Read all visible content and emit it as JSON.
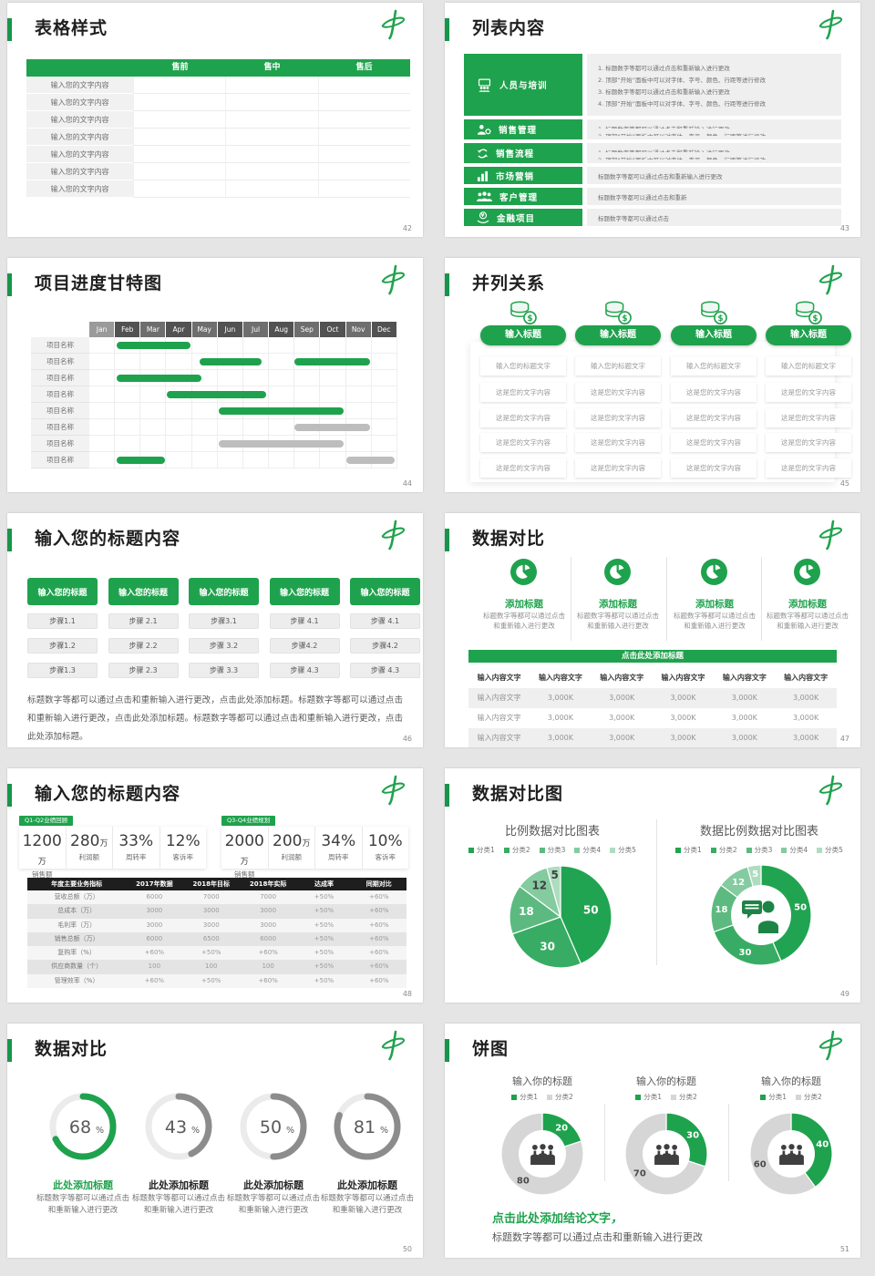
{
  "brand": {
    "logo": "calligraphic-zhong-mark",
    "accent_green": "#1fa24d"
  },
  "colors": {
    "green": "#1fa24d",
    "green_dark": "#17954a",
    "gray_bar": "#bdbdbd",
    "ring_gray": "#8c8c8c",
    "ring_track": "#ebebeb",
    "pie": [
      "#21a451",
      "#38ac64",
      "#5cba80",
      "#84cba0",
      "#aedcc0"
    ],
    "donut_gray": "#d6d6d6"
  },
  "slides": {
    "s42": {
      "title": "表格样式",
      "page": "42",
      "table": {
        "headers": [
          "",
          "售前",
          "售中",
          "售后"
        ],
        "row_label": "输入您的文字内容",
        "row_count": 7
      }
    },
    "s43": {
      "title": "列表内容",
      "page": "43",
      "items": [
        {
          "label": "人员与培训",
          "icon": "training-icon",
          "lines": [
            "1.   标题数字等都可以通过点击和重新输入进行更改",
            "2.   顶部“开始”面板中可以对字体、字号、颜色、行距等进行修改",
            "3.   标题数字等都可以通过点击和重新输入进行更改",
            "4.   顶部“开始”面板中可以对字体、字号、颜色、行距等进行修改"
          ]
        },
        {
          "label": "销售管理",
          "icon": "sales-manager-icon",
          "lines": [
            "1.   标题数字等都可以通过点击和重新输入进行更改",
            "2.   顶部“开始”面板中可以对字体、字号、颜色、行距等进行修改"
          ]
        },
        {
          "label": "销售流程",
          "icon": "process-arrows-icon",
          "lines": [
            "1.   标题数字等都可以通过点击和重新输入进行更改",
            "2.   顶部“开始”面板中可以对字体、字号、颜色、行距等进行修改"
          ]
        },
        {
          "label": "市场营销",
          "icon": "bar-chart-icon",
          "lines": [
            "标题数字等都可以通过点击和重新输入进行更改"
          ]
        },
        {
          "label": "客户管理",
          "icon": "customers-icon",
          "lines": [
            "标题数字等都可以通过点击和重新"
          ]
        },
        {
          "label": "金融项目",
          "icon": "finance-coin-icon",
          "lines": [
            "标题数字等都可以通过点击"
          ]
        }
      ]
    },
    "s44": {
      "title": "项目进度甘特图",
      "page": "44"
    },
    "s45": {
      "title": "并列关系",
      "page": "45",
      "columns": [
        {
          "icon": "coins-icon",
          "header": "输入标题",
          "items": [
            "输入您的标题文字",
            "这是您的文字内容",
            "这是您的文字内容",
            "这是您的文字内容",
            "这是您的文字内容"
          ]
        },
        {
          "icon": "coins-icon",
          "header": "输入标题",
          "items": [
            "输入您的标题文字",
            "这是您的文字内容",
            "这是您的文字内容",
            "这是您的文字内容",
            "这是您的文字内容"
          ]
        },
        {
          "icon": "coins-icon",
          "header": "输入标题",
          "items": [
            "输入您的标题文字",
            "这是您的文字内容",
            "这是您的文字内容",
            "这是您的文字内容",
            "这是您的文字内容"
          ]
        },
        {
          "icon": "coins-icon",
          "header": "输入标题",
          "items": [
            "输入您的标题文字",
            "这是您的文字内容",
            "这是您的文字内容",
            "这是您的文字内容",
            "这是您的文字内容"
          ]
        }
      ]
    },
    "s46": {
      "title": "输入您的标题内容",
      "page": "46",
      "columns": [
        {
          "header": "输入您的标题",
          "steps": [
            "步骤1.1",
            "步骤1.2",
            "步骤1.3"
          ]
        },
        {
          "header": "输入您的标题",
          "steps": [
            "步骤 2.1",
            "步骤 2.2",
            "步骤 2.3"
          ]
        },
        {
          "header": "输入您的标题",
          "steps": [
            "步骤3.1",
            "步骤 3.2",
            "步骤 3.3"
          ]
        },
        {
          "header": "输入您的标题",
          "steps": [
            "步骤 4.1",
            "步骤4.2",
            "步骤 4.3"
          ]
        },
        {
          "header": "输入您的标题",
          "steps": [
            "步骤 4.1",
            "步骤4.2",
            "步骤 4.3"
          ]
        }
      ],
      "paragraph": "标题数字等都可以通过点击和重新输入进行更改，点击此处添加标题。标题数字等都可以通过点击和重新输入进行更改，点击此处添加标题。标题数字等都可以通过点击和重新输入进行更改，点击此处添加标题。"
    },
    "s47": {
      "title": "数据对比",
      "page": "47",
      "features": [
        {
          "icon": "pie-badge-icon",
          "heading": "添加标题",
          "desc": "标题数字等都可以通过点击和重新输入进行更改"
        },
        {
          "icon": "pie-badge-icon",
          "heading": "添加标题",
          "desc": "标题数字等都可以通过点击和重新输入进行更改"
        },
        {
          "icon": "pie-badge-icon",
          "heading": "添加标题",
          "desc": "标题数字等都可以通过点击和重新输入进行更改"
        },
        {
          "icon": "pie-badge-icon",
          "heading": "添加标题",
          "desc": "标题数字等都可以通过点击和重新输入进行更改"
        }
      ],
      "banner": "点击此处添加标题",
      "table": {
        "headers": [
          "输入内容文字",
          "输入内容文字",
          "输入内容文字",
          "输入内容文字",
          "输入内容文字",
          "输入内容文字"
        ],
        "rows": [
          [
            "输入内容文字",
            "3,000K",
            "3,000K",
            "3,000K",
            "3,000K",
            "3,000K"
          ],
          [
            "输入内容文字",
            "3,000K",
            "3,000K",
            "3,000K",
            "3,000K",
            "3,000K"
          ],
          [
            "输入内容文字",
            "3,000K",
            "3,000K",
            "3,000K",
            "3,000K",
            "3,000K"
          ]
        ]
      }
    },
    "s48": {
      "title": "输入您的标题内容",
      "page": "48",
      "groups": [
        {
          "tag": "Q1-Q2业绩回顾",
          "stats": [
            {
              "value": "1200",
              "unit": "万",
              "label": "销售额"
            },
            {
              "value": "280",
              "unit": "万",
              "label": "利润额"
            },
            {
              "value": "33%",
              "unit": "",
              "label": "周转率"
            },
            {
              "value": "12%",
              "unit": "",
              "label": "客诉率"
            }
          ]
        },
        {
          "tag": "Q3-Q4业绩规划",
          "stats": [
            {
              "value": "2000",
              "unit": "万",
              "label": "销售额"
            },
            {
              "value": "200",
              "unit": "万",
              "label": "利润额"
            },
            {
              "value": "34%",
              "unit": "",
              "label": "周转率"
            },
            {
              "value": "10%",
              "unit": "",
              "label": "客诉率"
            }
          ]
        }
      ],
      "table": {
        "headers": [
          "年度主要业务指标",
          "2017年数据",
          "2018年目标",
          "2018年实际",
          "达成率",
          "同期对比"
        ],
        "rows": [
          [
            "营收总额（万）",
            "6000",
            "7000",
            "7000",
            "+50%",
            "+60%"
          ],
          [
            "总成本（万）",
            "3000",
            "3000",
            "3000",
            "+50%",
            "+60%"
          ],
          [
            "毛利率（万）",
            "3000",
            "3000",
            "3000",
            "+50%",
            "+60%"
          ],
          [
            "销售总额（万）",
            "6000",
            "6500",
            "6000",
            "+50%",
            "+60%"
          ],
          [
            "复购率（%）",
            "+60%",
            "+50%",
            "+60%",
            "+50%",
            "+60%"
          ],
          [
            "供应商数量（个）",
            "100",
            "100",
            "100",
            "+50%",
            "+60%"
          ],
          [
            "管理效率（%）",
            "+60%",
            "+50%",
            "+60%",
            "+50%",
            "+60%"
          ]
        ]
      }
    },
    "s49": {
      "title": "数据对比图",
      "page": "49"
    },
    "s50": {
      "title": "数据对比",
      "page": "50",
      "rings": [
        {
          "pct": 68,
          "accent": true,
          "heading": "此处添加标题",
          "desc": "标题数字等都可以通过点击和重新输入进行更改"
        },
        {
          "pct": 43,
          "accent": false,
          "heading": "此处添加标题",
          "desc": "标题数字等都可以通过点击和重新输入进行更改"
        },
        {
          "pct": 50,
          "accent": false,
          "heading": "此处添加标题",
          "desc": "标题数字等都可以通过点击和重新输入进行更改"
        },
        {
          "pct": 81,
          "accent": false,
          "heading": "此处添加标题",
          "desc": "标题数字等都可以通过点击和重新输入进行更改"
        }
      ]
    },
    "s51": {
      "title": "饼图",
      "page": "51",
      "conclusion_heading": "点击此处添加结论文字",
      "conclusion_comma": "，",
      "conclusion_desc": "标题数字等都可以通过点击和重新输入进行更改"
    }
  },
  "chart_data": [
    {
      "type": "gantt",
      "slide": "44",
      "row_label": "项目名称",
      "months": [
        "Jan",
        "Feb",
        "Mar",
        "Apr",
        "May",
        "Jun",
        "Jul",
        "Aug",
        "Sep",
        "Oct",
        "Nov",
        "Dec"
      ],
      "bars": [
        [
          {
            "start": 1.05,
            "end": 3.95,
            "color": "green"
          }
        ],
        [
          {
            "start": 4.3,
            "end": 6.7,
            "color": "green"
          },
          {
            "start": 8.0,
            "end": 10.95,
            "color": "green"
          }
        ],
        [
          {
            "start": 1.05,
            "end": 4.35,
            "color": "green"
          }
        ],
        [
          {
            "start": 3.0,
            "end": 6.9,
            "color": "green"
          }
        ],
        [
          {
            "start": 5.05,
            "end": 9.9,
            "color": "green"
          }
        ],
        [
          {
            "start": 8.0,
            "end": 10.95,
            "color": "gray"
          }
        ],
        [
          {
            "start": 5.05,
            "end": 9.9,
            "color": "gray"
          }
        ],
        [
          {
            "start": 1.05,
            "end": 2.95,
            "color": "green"
          },
          {
            "start": 10.0,
            "end": 11.9,
            "color": "gray"
          }
        ]
      ]
    },
    {
      "type": "pie",
      "slide": "49",
      "title": "比例数据对比图表",
      "legend": [
        "分类1",
        "分类2",
        "分类3",
        "分类4",
        "分类5"
      ],
      "values": [
        50,
        30,
        18,
        12,
        5
      ]
    },
    {
      "type": "donut",
      "slide": "49",
      "title": "数据比例数据对比图表",
      "legend": [
        "分类1",
        "分类2",
        "分类3",
        "分类4",
        "分类5"
      ],
      "values": [
        50,
        30,
        18,
        12,
        5
      ],
      "center_icon": "consultant-chat-icon"
    },
    {
      "type": "progress-rings",
      "slide": "50",
      "values": [
        68,
        43,
        50,
        81
      ]
    },
    {
      "type": "donut",
      "slide": "51",
      "title": "输入你的标题",
      "legend": [
        "分类1",
        "分类2"
      ],
      "values": [
        20,
        80
      ],
      "center_icon": "people-group-icon"
    },
    {
      "type": "donut",
      "slide": "51",
      "title": "输入你的标题",
      "legend": [
        "分类1",
        "分类2"
      ],
      "values": [
        30,
        70
      ],
      "center_icon": "people-group-icon"
    },
    {
      "type": "donut",
      "slide": "51",
      "title": "输入你的标题",
      "legend": [
        "分类1",
        "分类2"
      ],
      "values": [
        40,
        60
      ],
      "center_icon": "people-group-icon"
    }
  ]
}
